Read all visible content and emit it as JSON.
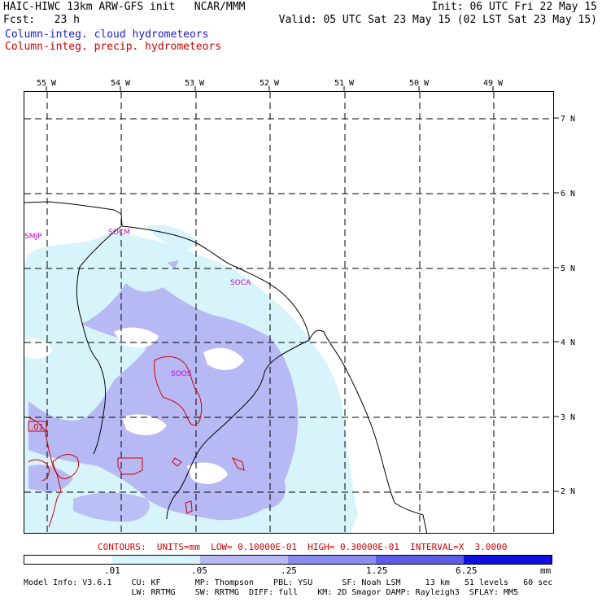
{
  "header": {
    "line1_left": "HAIC-HIWC 13km ARW-GFS init   NCAR/MMM",
    "line1_right": "Init: 06 UTC Fri 22 May 15",
    "line2_left": "Fcst:   23 h",
    "line2_right": "Valid: 05 UTC Sat 23 May 15 (02 LST Sat 23 May 15)",
    "legend_cloud": "Column-integ. cloud hydrometeors",
    "legend_precip": "Column-integ. precip. hydrometeors",
    "cloud_color": "#1a1acc",
    "precip_color": "#d40000"
  },
  "map": {
    "lon_labels": [
      "55 W",
      "54 W",
      "53 W",
      "52 W",
      "51 W",
      "50 W",
      "49 W"
    ],
    "lat_labels": [
      "7 N",
      "6 N",
      "5 N",
      "4 N",
      "3 N",
      "2 N"
    ],
    "station_labels": [
      "SMJP",
      "SOCM",
      "SOCA",
      "SOOS"
    ],
    "contour_label": ".01"
  },
  "footer": {
    "contours_line": "CONTOURS:  UNITS=mm  LOW= 0.10000E-01  HIGH= 0.30000E-01  INTERVAL=X  3.0000",
    "colorbar_ticks": [
      ".01",
      ".05",
      ".25",
      "1.25",
      "6.25"
    ],
    "colorbar_unit": "mm",
    "colorbar_colors": [
      "#ffffff",
      "#d8f4fb",
      "#b7b9f5",
      "#8a8cf0",
      "#5c5ce6",
      "#1010e0"
    ],
    "model_line1": "Model Info: V3.6.1    CU: KF       MP: Thompson    PBL: YSU      SF: Noah LSM     13 km   51 levels   60 sec",
    "model_line2": "                      LW: RRTMG    SW: RRTMG  DIFF: full    KM: 2D Smagor DAMP: Rayleigh3  SFLAY: MM5"
  }
}
